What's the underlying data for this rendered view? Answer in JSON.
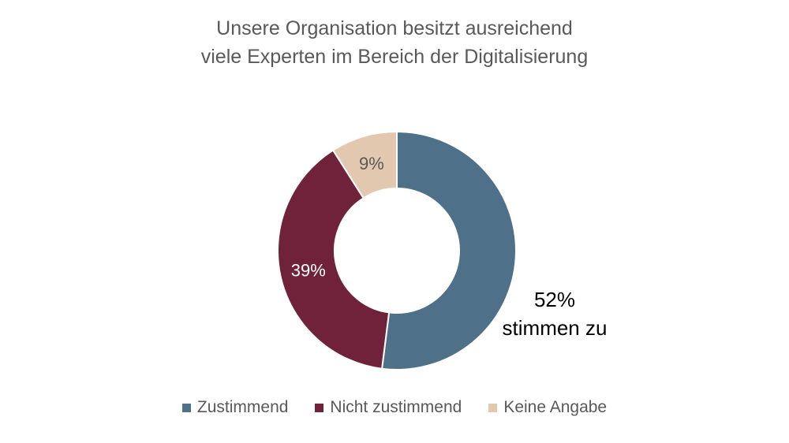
{
  "chart_data": {
    "type": "pie",
    "title_lines": [
      "Unsere Organisation besitzt ausreichend",
      "viele Experten im Bereich der Digitalisierung"
    ],
    "categories": [
      "Zustimmend",
      "Nicht zustimmend",
      "Keine Angabe"
    ],
    "values": [
      52,
      39,
      9
    ],
    "unit": "%",
    "colors": [
      "#4e7189",
      "#70223a",
      "#e1c8ae"
    ],
    "data_labels": [
      "",
      "39%",
      "9%"
    ],
    "label_colors": [
      "#ffffff",
      "#ffffff",
      "#595959"
    ],
    "callout": {
      "value": "52%",
      "text": "stimmen zu"
    },
    "legend_position": "bottom",
    "donut": true
  }
}
